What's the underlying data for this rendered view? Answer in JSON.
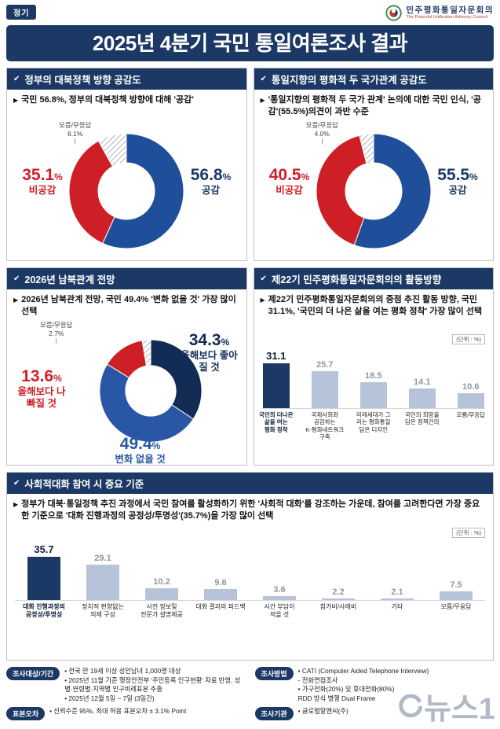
{
  "header": {
    "badge": "정기",
    "org_kr": "민주평화통일자문회의",
    "org_en": "The Peaceful Unification Advisory Council",
    "title": "2025년 4분기 국민 통일여론조사 결과"
  },
  "strings": {
    "percent": "%"
  },
  "panels": {
    "p1": {
      "header": "정부의 대북정책 방향 공감도",
      "bullet": "국민 56.8%, 정부의 대북정책 방향에 대해 '공감'"
    },
    "p2": {
      "header": "통일지향의 평화적 두 국가관계 공감도",
      "bullet": "'통일지향의 평화적 두 국가 관계' 논의에 대한 국민 인식, '공감'(55.5%)의견이 과반 수준"
    },
    "p3": {
      "header": "2026년 남북관계 전망",
      "bullet": "2026년 남북관계 전망, 국민 49.4% '변화 없을 것' 가장 많이 선택"
    },
    "p4": {
      "header": "제22기 민주평화통일자문회의의 활동방향",
      "bullet": "제22기 민주평화통일자문회의의 중점 추진 활동 방향, 국민 31.1%, '국민의 더 나은 삶을 여는 평화 정착' 가장 많이 선택"
    },
    "p5": {
      "header": "사회적대화 참여 시 중요 기준",
      "bullet": "정부가 대북·통일정책 추진 과정에서 국민 참여를 활성화하기 위한 '사회적 대화'를 강조하는 가운데, 참여를 고려한다면 가장 중요한 기준으로 '대화 진행과정의 공정성/투명성'(35.7%)을 가장 많이 선택"
    }
  },
  "chart_data": [
    {
      "type": "pie",
      "title": "정부의 대북정책 방향 공감도",
      "segments": [
        {
          "label": "공감",
          "value": 56.8,
          "value_text": "56.8",
          "color": "#1f4e9b"
        },
        {
          "label": "비공감",
          "value": 35.1,
          "value_text": "35.1",
          "color": "#cf1f26"
        },
        {
          "label": "모름/무응답",
          "value": 8.1,
          "value_text": "8.1",
          "color": "hatch"
        }
      ]
    },
    {
      "type": "pie",
      "title": "통일지향의 평화적 두 국가관계 공감도",
      "segments": [
        {
          "label": "공감",
          "value": 55.5,
          "value_text": "55.5",
          "color": "#1f4e9b"
        },
        {
          "label": "비공감",
          "value": 40.5,
          "value_text": "40.5",
          "color": "#cf1f26"
        },
        {
          "label": "모름/무응답",
          "value": 4.0,
          "value_text": "4.0",
          "color": "hatch"
        }
      ]
    },
    {
      "type": "pie",
      "title": "2026년 남북관계 전망",
      "segments": [
        {
          "label": "올해보다 좋아질 것",
          "value": 34.3,
          "value_text": "34.3",
          "color": "#132c55"
        },
        {
          "label": "변화 없을 것",
          "value": 49.4,
          "value_text": "49.4",
          "color": "#2a57a5"
        },
        {
          "label": "올해보다 나빠질 것",
          "value": 13.6,
          "value_text": "13.6",
          "color": "#cf1f26"
        },
        {
          "label": "모름/무응답",
          "value": 2.7,
          "value_text": "2.7",
          "color": "hatch"
        }
      ]
    },
    {
      "type": "bar",
      "title": "제22기 민주평화통일자문회의의 활동방향",
      "unit": "(단위 : %)",
      "categories": [
        "국민의 더나은\n삶을 여는\n평화 정착",
        "국제사회와\n공감하는\nK-평화네트워크\n구축",
        "미래세대가 그\n리는 평화통일\n담은 디자인",
        "국민의 희망을\n담은 정책건의",
        "모름/무응답"
      ],
      "values": [
        31.1,
        25.7,
        18.5,
        14.1,
        10.6
      ],
      "highlight_index": 0,
      "highlight_color": "#1c3966",
      "bar_color": "#b7c3d8",
      "ylim": [
        0,
        35
      ],
      "grid": false,
      "legend": "none"
    },
    {
      "type": "bar",
      "title": "사회적대화 참여 시 중요 기준",
      "unit": "(단위 : %)",
      "categories": [
        "대화 진행과정의\n공정성/투명성",
        "정치적 편향없는\n의제 구성",
        "사전 정보및\n전문가 설명제공",
        "대화 결과의 피드백",
        "시간 부담이\n적을 것",
        "참가비/사례비",
        "기타",
        "모름/무응답"
      ],
      "values": [
        35.7,
        29.1,
        10.2,
        9.6,
        3.6,
        2.2,
        2.1,
        7.5
      ],
      "highlight_index": 0,
      "highlight_color": "#1c3966",
      "bar_color": "#b7c3d8",
      "ylim": [
        0,
        40
      ],
      "grid": false,
      "legend": "none"
    }
  ],
  "footer": {
    "r1": {
      "badge": "조사대상/기간",
      "lines": [
        "• 전국 만 19세 이상 성인남녀 1,000명 대상",
        "• 2025년 11월 기준 행정안전부 '주민등록 인구현황' 자료 반영, 성별·연령별·지역별 인구비례표본 추출",
        "• 2025년 12월 5일 ~ 7일 (3일간)"
      ]
    },
    "r2": {
      "badge": "조사방법",
      "lines": [
        "• CATI (Computer Aided Telephone Interview)",
        "  - 전화면접조사",
        "• 가구전화(20%) 및 휴대전화(80%)",
        "  RDD 방식 병행 Dual Frame"
      ]
    },
    "r3": {
      "badge": "표본오차",
      "lines": [
        "• 신뢰수준 95%, 최대 허용 표본오차 ± 3.1% Point"
      ]
    },
    "r4": {
      "badge": "조사기관",
      "lines": [
        "• 글로벌알앤씨(주)"
      ]
    }
  },
  "watermark": "뉴스1"
}
